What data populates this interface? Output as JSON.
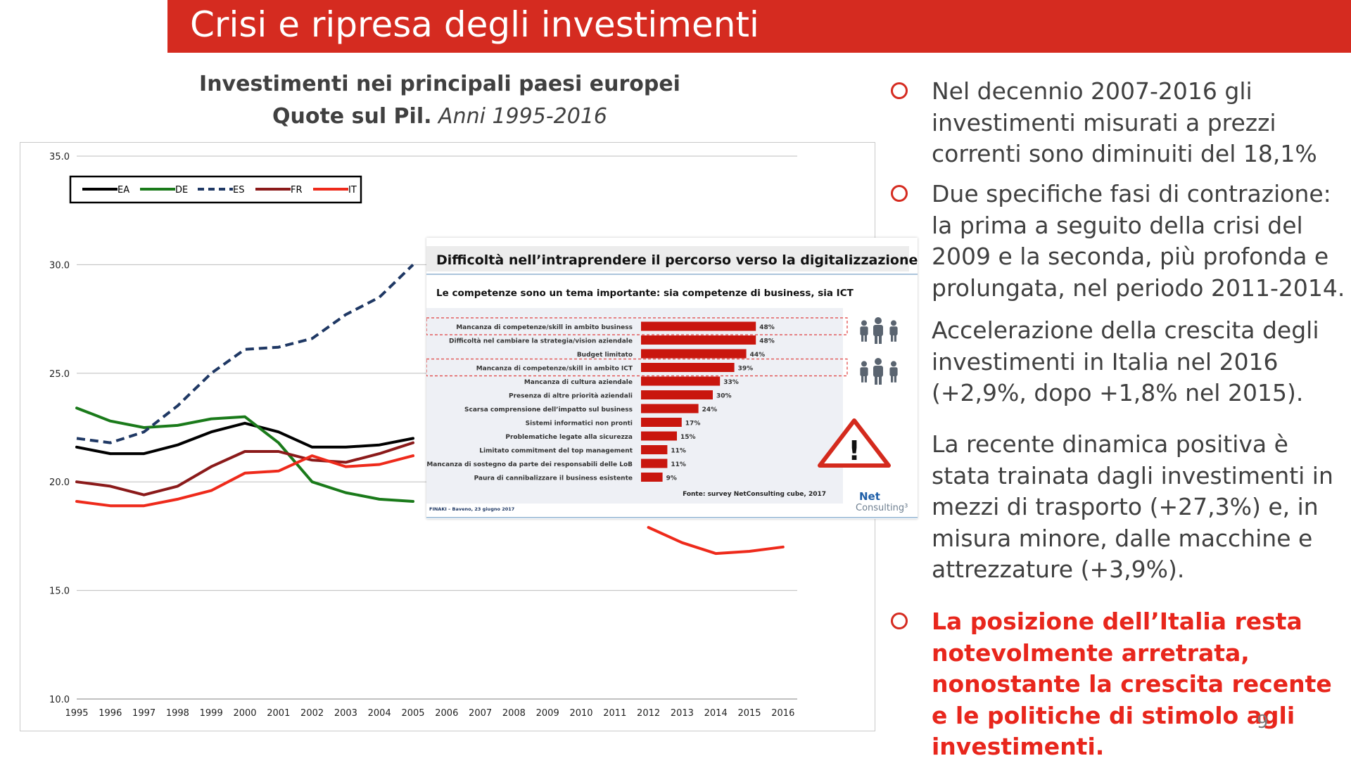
{
  "slide": {
    "title": "Crisi e ripresa degli investimenti",
    "page_number": "9"
  },
  "chart_heading": {
    "line1": "Investimenti nei principali paesi europei",
    "line2_bold": "Quote sul Pil.",
    "line2_italic": "Anni 1995-2016"
  },
  "bullets": [
    {
      "text": "Nel decennio 2007-2016 gli investimenti misurati a prezzi correnti sono diminuiti del 18,1%",
      "marker": true,
      "style": "normal"
    },
    {
      "text": "Due specifiche fasi di contrazione: la prima a seguito della crisi del 2009 e la seconda, più profonda e prolungata, nel periodo 2011-2014.",
      "marker": true,
      "style": "normal"
    },
    {
      "text": "Accelerazione della crescita degli investimenti in Italia nel 2016 (+2,9%, dopo +1,8% nel 2015).",
      "marker": false,
      "style": "normal"
    },
    {
      "text": "La recente dinamica positiva è stata trainata dagli investimenti in mezzi di trasporto (+27,3%) e, in misura minore, dalle macchine e attrezzature (+3,9%).",
      "marker": false,
      "style": "normal"
    },
    {
      "text": "La posizione dell’Italia resta notevolmente arretrata, nonostante la crescita recente e le politiche di stimolo agli investimenti.",
      "marker": true,
      "style": "red-bold"
    }
  ],
  "colors": {
    "accent": "#d52b20",
    "EA": "#000000",
    "DE": "#1a7a1a",
    "ES": "#1f3864",
    "FR": "#8b1a1a",
    "IT": "#ee2a1b"
  },
  "chart_data": [
    {
      "type": "line",
      "title": "",
      "xlabel": "",
      "ylabel": "",
      "x": [
        1995,
        1996,
        1997,
        1998,
        1999,
        2000,
        2001,
        2002,
        2003,
        2004,
        2005,
        2006,
        2007,
        2008,
        2009,
        2010,
        2011,
        2012,
        2013,
        2014,
        2015,
        2016
      ],
      "ylim": [
        10,
        35
      ],
      "yticks": [
        "10.0",
        "15.0",
        "20.0",
        "25.0",
        "30.0",
        "35.0"
      ],
      "legend_position": "top-left",
      "grid": "horizontal",
      "series": [
        {
          "name": "EA",
          "style": "solid",
          "values": [
            21.6,
            21.3,
            21.3,
            21.7,
            22.3,
            22.7,
            22.3,
            21.6,
            21.6,
            21.7,
            22.0,
            null,
            null,
            null,
            null,
            null,
            null,
            null,
            null,
            null,
            null,
            null
          ]
        },
        {
          "name": "DE",
          "style": "solid",
          "values": [
            23.4,
            22.8,
            22.5,
            22.6,
            22.9,
            23.0,
            21.8,
            20.0,
            19.5,
            19.2,
            19.1,
            null,
            null,
            null,
            null,
            null,
            null,
            null,
            null,
            null,
            null,
            null
          ]
        },
        {
          "name": "ES",
          "style": "dashed",
          "values": [
            22.0,
            21.8,
            22.3,
            23.5,
            25.0,
            26.1,
            26.2,
            26.6,
            27.7,
            28.5,
            30.0,
            null,
            null,
            null,
            null,
            null,
            null,
            null,
            null,
            null,
            null,
            null
          ]
        },
        {
          "name": "FR",
          "style": "solid",
          "values": [
            20.0,
            19.8,
            19.4,
            19.8,
            20.7,
            21.4,
            21.4,
            21.0,
            20.9,
            21.3,
            21.8,
            null,
            null,
            null,
            null,
            null,
            null,
            null,
            null,
            null,
            null,
            null
          ]
        },
        {
          "name": "IT",
          "style": "solid",
          "values": [
            19.1,
            18.9,
            18.9,
            19.2,
            19.6,
            20.4,
            20.5,
            21.2,
            20.7,
            20.8,
            21.2,
            null,
            null,
            null,
            null,
            null,
            null,
            17.9,
            17.2,
            16.7,
            16.8,
            17.0
          ]
        }
      ]
    },
    {
      "type": "bar",
      "orientation": "horizontal",
      "title": "Difficoltà nell’intraprendere il percorso verso la digitalizzazione",
      "subtitle": "Le competenze sono un tema importante: sia competenze di business, sia ICT",
      "source": "Fonte: survey NetConsulting cube, 2017",
      "footer": "FINAKI – Baveno, 23 giugno 2017",
      "logo": "NetConsulting cube",
      "categories": [
        "Mancanza di competenze/skill in ambito business",
        "Difficoltà nel cambiare la strategia/vision aziendale",
        "Budget limitato",
        "Mancanza di competenze/skill in ambito ICT",
        "Mancanza di cultura aziendale",
        "Presenza di altre priorità aziendali",
        "Scarsa comprensione dell’impatto sul business",
        "Sistemi informatici non pronti",
        "Problematiche legate alla sicurezza",
        "Limitato commitment del top management",
        "Mancanza di sostegno da parte dei responsabili delle LoB",
        "Paura di cannibalizzare il business esistente"
      ],
      "values": [
        48,
        48,
        44,
        39,
        33,
        30,
        24,
        17,
        15,
        11,
        11,
        9
      ],
      "labels": [
        "48%",
        "48%",
        "44%",
        "39%",
        "33%",
        "30%",
        "24%",
        "17%",
        "15%",
        "11%",
        "11%",
        "9%"
      ],
      "highlighted": [
        0,
        3
      ]
    }
  ]
}
